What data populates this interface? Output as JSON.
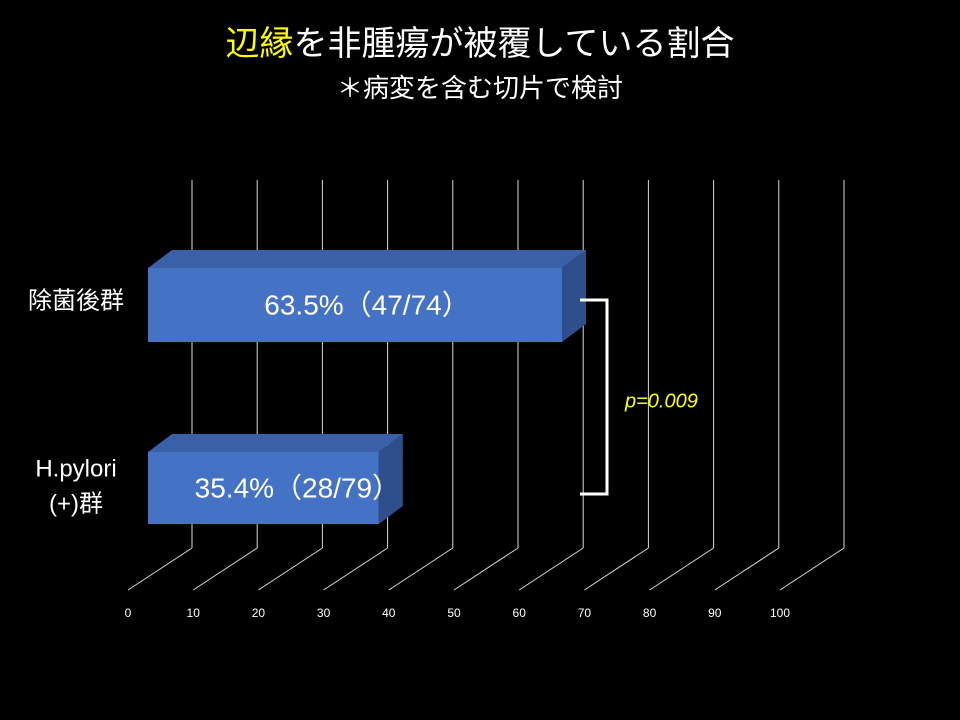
{
  "chart_data": {
    "type": "bar3d-horizontal",
    "title": [
      {
        "text": "辺縁",
        "color": "#ffff00"
      },
      {
        "text": "を非腫瘍が被覆している割合",
        "color": "#ffffff"
      }
    ],
    "subtitle": "＊病変を含む切片で検討",
    "categories": [
      [
        "除菌後群"
      ],
      [
        "H.pylori",
        "(+)群"
      ]
    ],
    "values": [
      63.5,
      35.4
    ],
    "value_labels": [
      "63.5%（47/74）",
      "35.4%（28/79）"
    ],
    "color": "#4472c4",
    "xlim": [
      0,
      100
    ],
    "xticks": [
      0,
      10,
      20,
      30,
      40,
      50,
      60,
      70,
      80,
      90,
      100
    ],
    "grid": true,
    "annotation": {
      "text": "p=0.009",
      "color": "#ffff00"
    }
  }
}
